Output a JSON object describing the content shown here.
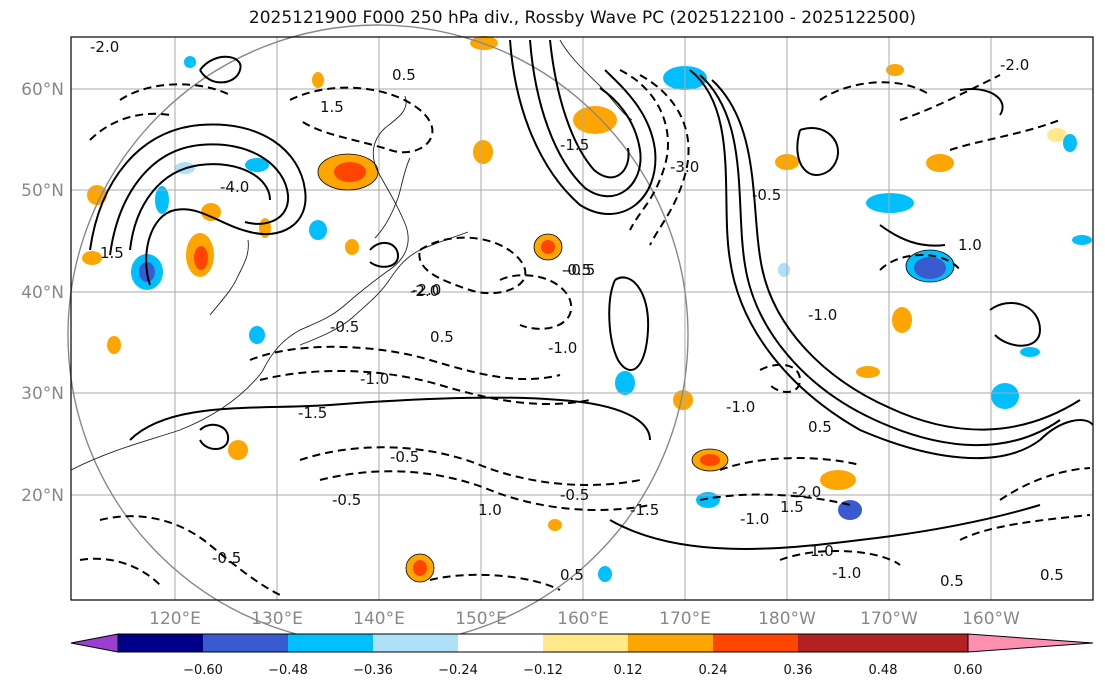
{
  "title": "2025121900 F000 250 hPa div., Rossby Wave PC (2025122100 - 2025122500)",
  "map": {
    "lon_labels": [
      "120°E",
      "130°E",
      "140°E",
      "150°E",
      "160°E",
      "170°E",
      "180°W",
      "170°W",
      "160°W"
    ],
    "lat_labels": [
      "60°N",
      "50°N",
      "40°N",
      "30°N",
      "20°N"
    ],
    "gridlines": true,
    "contour_labels": [
      "-2.0",
      "-1.0",
      "-0.5",
      "1.5",
      "0.5",
      "-1.5",
      "-4.0",
      "0.5",
      "-3.0",
      "-1.0",
      "1.5",
      "-2.0",
      "-0.5",
      "-1.0",
      "-1.5",
      "-0.5",
      "-0.5",
      "-2.0",
      "1.0",
      "-1.5",
      "0.5",
      "-1.0",
      "-0.5",
      "-2.0",
      "0.5",
      "-1.0",
      "1.0",
      "0.5",
      "-0.5",
      "1.5",
      "-2.0",
      "1.0",
      "-0.5",
      "0.5",
      "-1.0",
      "-0.5"
    ]
  },
  "colorbar": {
    "ticks": [
      "−0.60",
      "−0.48",
      "−0.36",
      "−0.24",
      "−0.12",
      "0.12",
      "0.24",
      "0.36",
      "0.48",
      "0.60"
    ],
    "colors": [
      "#9a3fcf",
      "#000088",
      "#3a5bd0",
      "#00bfff",
      "#aee0f8",
      "#ffffff",
      "#ffe98a",
      "#ffa500",
      "#ff4500",
      "#b22222",
      "#ff8fb0"
    ]
  },
  "colors": {
    "positive_shading": [
      "#ffe98a",
      "#ffa500",
      "#ff4500"
    ],
    "negative_shading": [
      "#aee0f8",
      "#00bfff",
      "#3a5bd0"
    ],
    "contour": "#000000",
    "grid": "#aaaaaa"
  }
}
